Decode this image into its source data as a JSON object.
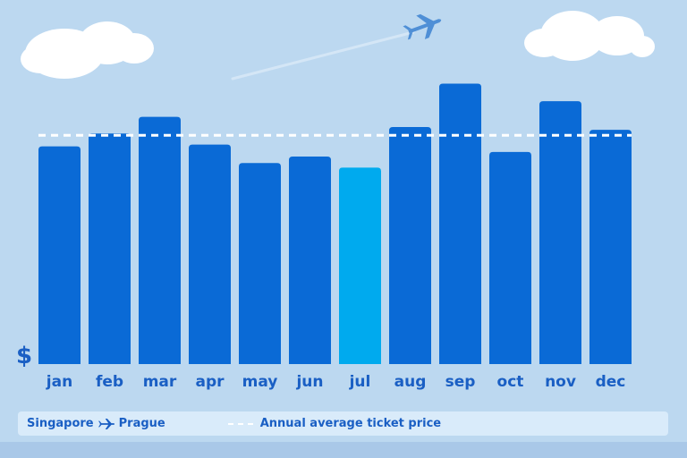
{
  "chart_data": {
    "type": "bar",
    "categories": [
      "jan",
      "feb",
      "mar",
      "apr",
      "may",
      "jun",
      "jul",
      "aug",
      "sep",
      "oct",
      "nov",
      "dec"
    ],
    "values": [
      236,
      250,
      268,
      238,
      218,
      225,
      213,
      257,
      304,
      230,
      285,
      254
    ],
    "highlight_index": 6,
    "average": 248,
    "y_unit_label": "$",
    "ylim": [
      0,
      320
    ],
    "colors": {
      "bar": "#0a6ad6",
      "highlight": "#00aaee",
      "average_line": "#ffffff"
    }
  },
  "legend": {
    "origin": "Singapore",
    "destination": "Prague",
    "route_icon": "plane-icon",
    "average_label": "Annual average ticket price"
  }
}
